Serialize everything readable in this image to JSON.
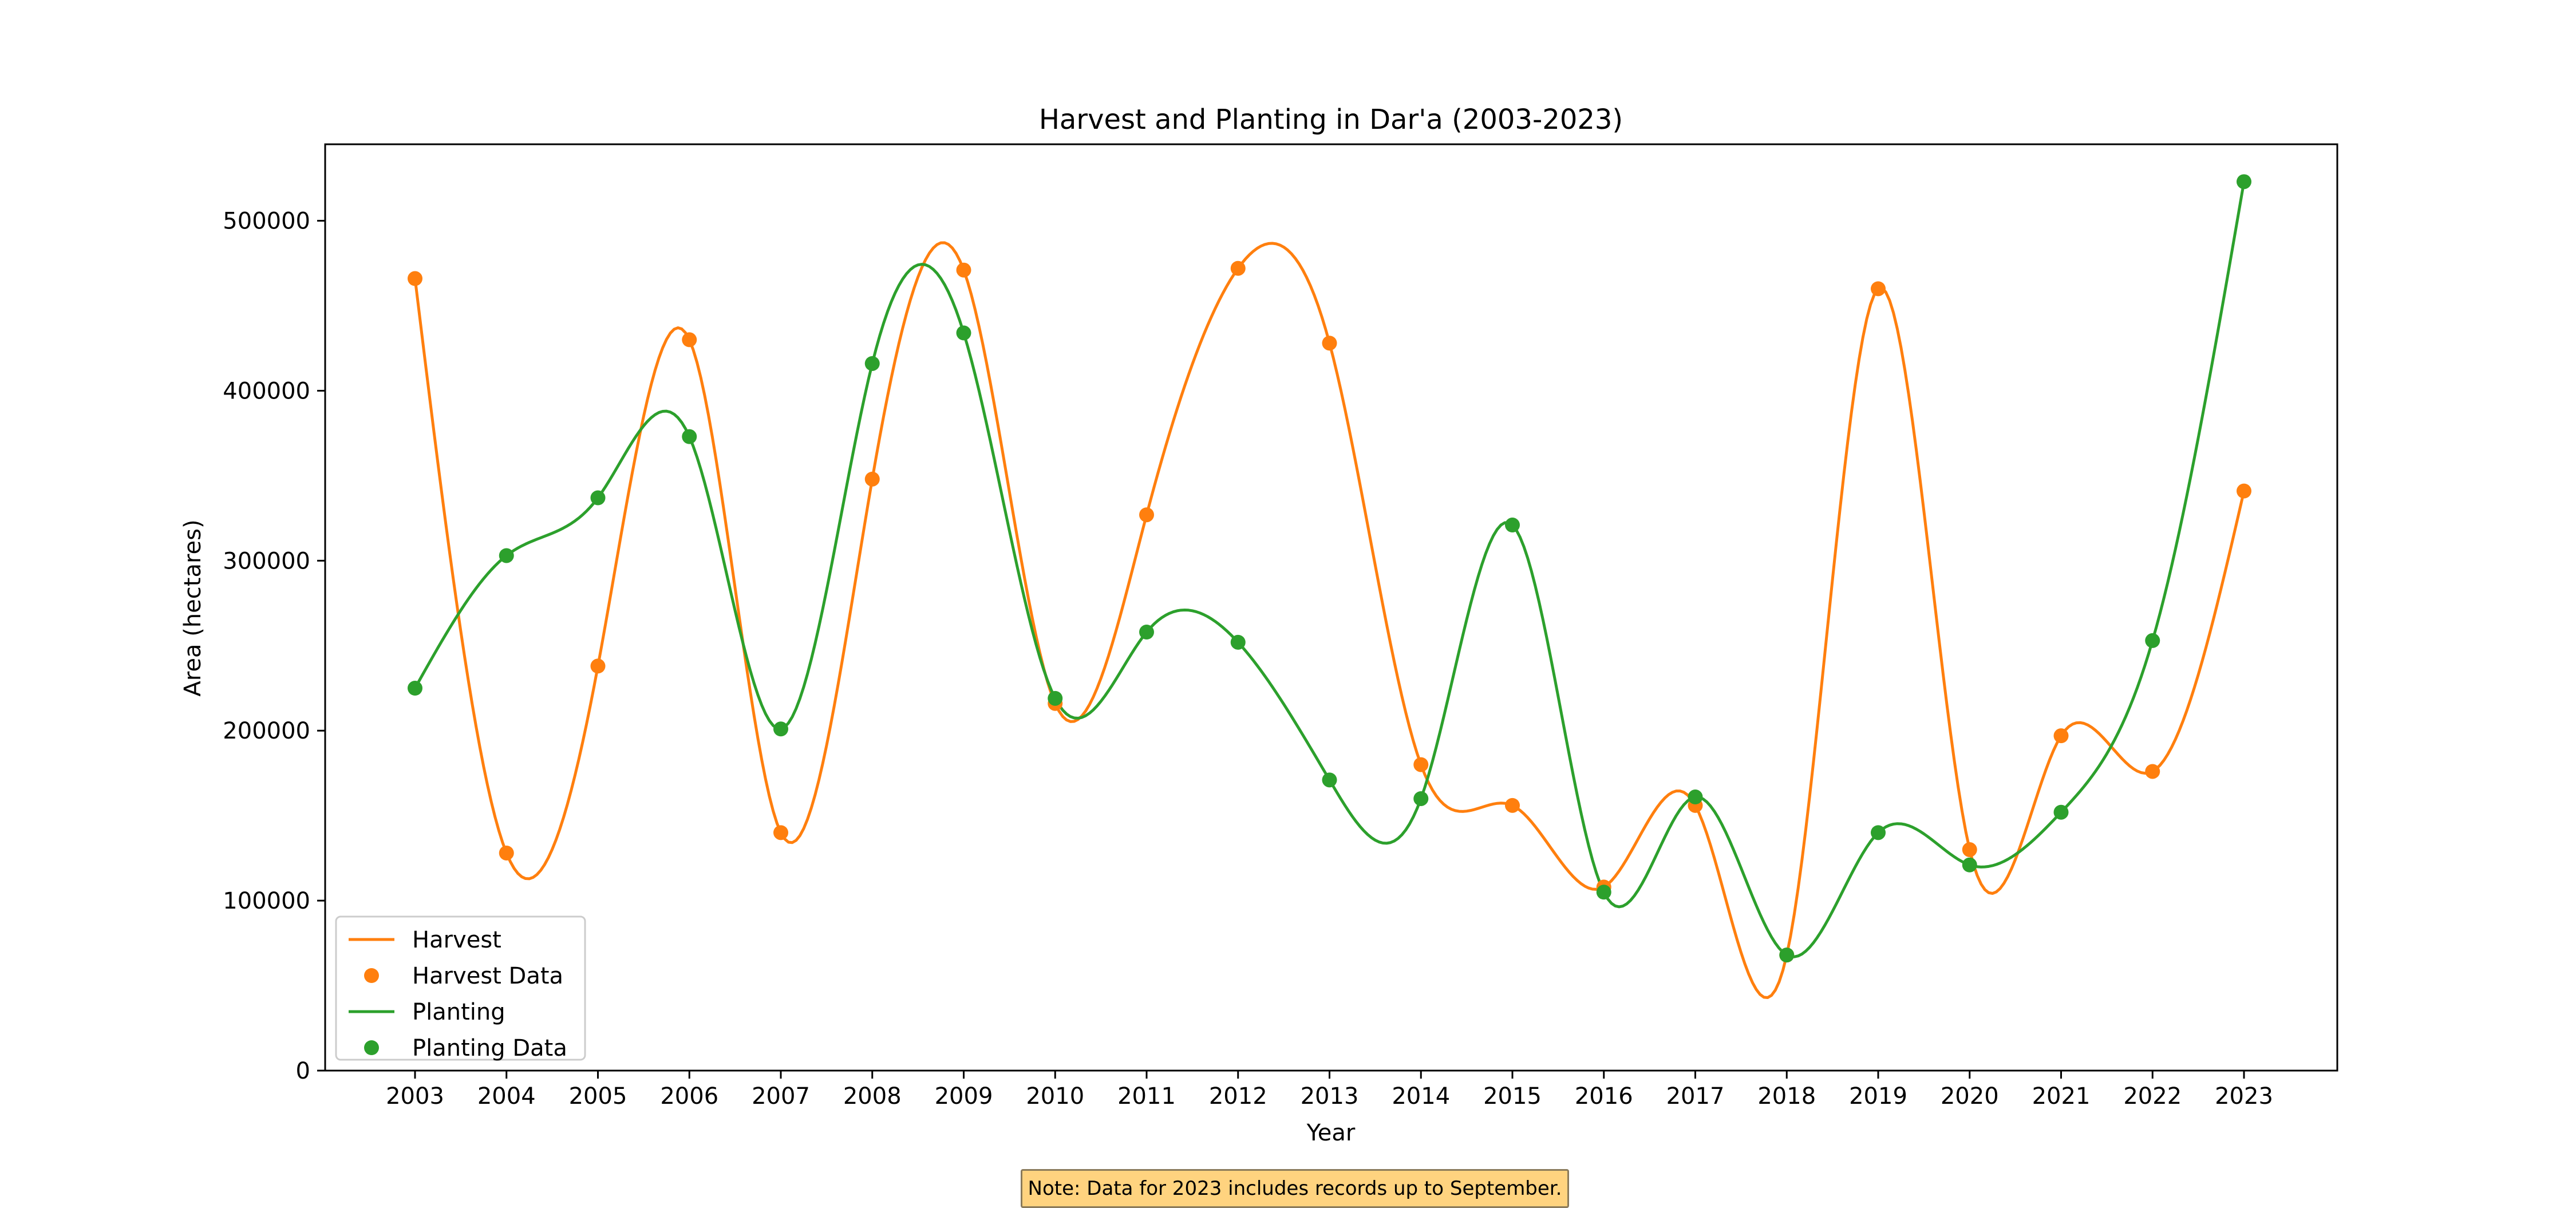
{
  "chart_data": {
    "type": "line",
    "title": "Harvest and Planting in Dar'a (2003-2023)",
    "xlabel": "Year",
    "ylabel": "Area (hectares)",
    "x": [
      2003,
      2004,
      2005,
      2006,
      2007,
      2008,
      2009,
      2010,
      2011,
      2012,
      2013,
      2014,
      2015,
      2016,
      2017,
      2018,
      2019,
      2020,
      2021,
      2022,
      2023
    ],
    "x_tick_labels": [
      "2003",
      "2004",
      "2005",
      "2006",
      "2007",
      "2008",
      "2009",
      "2010",
      "2011",
      "2012",
      "2013",
      "2014",
      "2015",
      "2016",
      "2017",
      "2018",
      "2019",
      "2020",
      "2021",
      "2022",
      "2023"
    ],
    "ylim": [
      0,
      545000
    ],
    "y_ticks": [
      0,
      100000,
      200000,
      300000,
      400000,
      500000
    ],
    "y_tick_labels": [
      "0",
      "100000",
      "200000",
      "300000",
      "400000",
      "500000"
    ],
    "series": [
      {
        "name": "Harvest",
        "color": "#ff7f0e",
        "values": [
          466000,
          128000,
          238000,
          430000,
          140000,
          348000,
          471000,
          216000,
          327000,
          472000,
          428000,
          180000,
          156000,
          108000,
          156000,
          68000,
          460000,
          130000,
          197000,
          176000,
          341000
        ]
      },
      {
        "name": "Planting",
        "color": "#2ca02c",
        "values": [
          225000,
          303000,
          337000,
          373000,
          201000,
          416000,
          434000,
          219000,
          258000,
          252000,
          171000,
          160000,
          321000,
          105000,
          161000,
          68000,
          140000,
          121000,
          152000,
          253000,
          523000
        ]
      }
    ],
    "legend": {
      "placement": "lower-left",
      "entries": [
        {
          "label": "Harvest",
          "kind": "line",
          "color": "#ff7f0e"
        },
        {
          "label": "Harvest Data",
          "kind": "marker",
          "color": "#ff7f0e"
        },
        {
          "label": "Planting",
          "kind": "line",
          "color": "#2ca02c"
        },
        {
          "label": "Planting Data",
          "kind": "marker",
          "color": "#2ca02c"
        }
      ]
    },
    "annotation": "Note: Data for 2023 includes records up to September.",
    "grid": false
  }
}
